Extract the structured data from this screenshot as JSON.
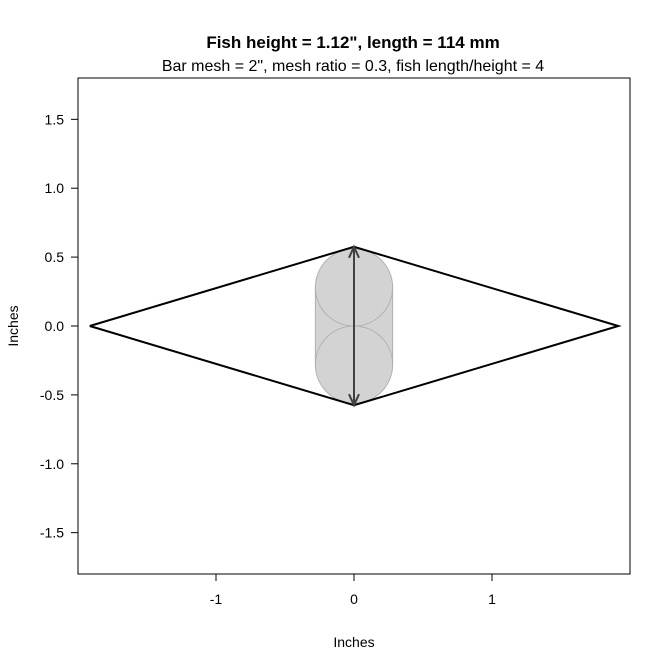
{
  "chart_data": {
    "type": "diagram",
    "title": "Fish height = 1.12\", length = 114 mm",
    "subtitle": "Bar mesh = 2\", mesh ratio = 0.3, fish length/height = 4",
    "xlabel": "Inches",
    "ylabel": "Inches",
    "xlim": [
      -2.0,
      2.0
    ],
    "ylim": [
      -1.8,
      1.8
    ],
    "x_ticks": [
      -1,
      0,
      1
    ],
    "x_tick_labels": [
      "-1",
      "0",
      "1"
    ],
    "y_ticks": [
      -1.5,
      -1.0,
      -0.5,
      0.0,
      0.5,
      1.0,
      1.5
    ],
    "y_tick_labels": [
      "-1.5",
      "-1.0",
      "-0.5",
      "0.0",
      "0.5",
      "1.0",
      "1.5"
    ],
    "grid": false,
    "mesh_polygon": [
      [
        -1.915,
        0.0
      ],
      [
        0.0,
        0.575
      ],
      [
        1.915,
        0.0
      ],
      [
        0.0,
        -0.575
      ],
      [
        -1.915,
        0.0
      ]
    ],
    "fish_cross_section": {
      "circle_radius": 0.28,
      "circle_centers": [
        [
          0.0,
          0.28
        ],
        [
          0.0,
          -0.28
        ]
      ],
      "rect_x": [
        -0.28,
        0.28
      ],
      "rect_y": [
        -0.28,
        0.28
      ],
      "fill_color": "#d3d3d3",
      "border_color": "#b0b0b0"
    },
    "height_arrow": {
      "x": 0.0,
      "y_from": -0.575,
      "y_to": 0.575,
      "color": "#404040"
    },
    "line_color": "#000000"
  }
}
